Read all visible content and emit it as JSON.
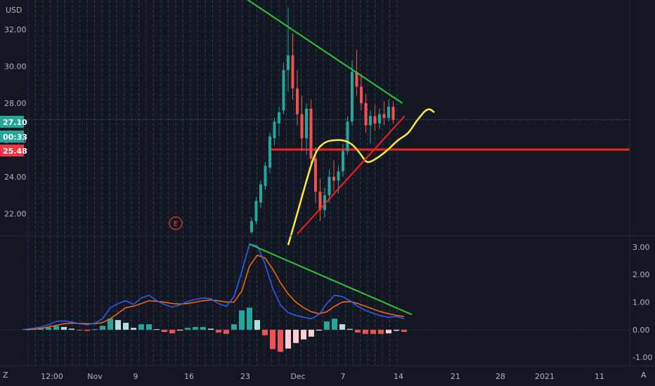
{
  "currency_label": "USD",
  "corner_left_label": "Z",
  "corner_right_label": "A",
  "earnings_marker": "E",
  "price_tags": {
    "last_price": {
      "text": "27.10",
      "color": "#26a69a"
    },
    "countdown": {
      "text": "00:33",
      "color": "#26a69a"
    },
    "support": {
      "text": "25.48",
      "color": "#f23645"
    }
  },
  "colors": {
    "background": "#131722",
    "up_candle": "#26a69a",
    "down_candle": "#ef5350",
    "moving_average": "#ffeb3b",
    "resistance_line": "#26c935",
    "support_line": "#ff1f1f",
    "macd_line": "#2962ff",
    "signal_line": "#ff6d00",
    "hist_positive": "#26a69a",
    "hist_positive_light": "#b2dfdb",
    "hist_negative": "#ef5350",
    "hist_negative_light": "#ffcdd2",
    "grid_dash": "#4a6fa5"
  },
  "chart_data": [
    {
      "type": "candlestick",
      "y_ticks": [
        "22.00",
        "24.00",
        "26.00",
        "28.00",
        "30.00",
        "32.00"
      ],
      "ylim": [
        20.8,
        33.6
      ],
      "x_tick_labels": [
        "12:00",
        "Nov",
        "9",
        "16",
        "23",
        "Dec",
        "7",
        "14",
        "21",
        "28",
        "2021",
        "11"
      ],
      "candles": [
        {
          "o": 21.0,
          "h": 21.8,
          "l": 20.9,
          "c": 21.6
        },
        {
          "o": 21.6,
          "h": 22.9,
          "l": 21.4,
          "c": 22.7
        },
        {
          "o": 22.6,
          "h": 23.8,
          "l": 22.3,
          "c": 23.6
        },
        {
          "o": 23.5,
          "h": 24.8,
          "l": 23.3,
          "c": 24.6
        },
        {
          "o": 24.5,
          "h": 26.4,
          "l": 24.2,
          "c": 26.2
        },
        {
          "o": 26.1,
          "h": 27.2,
          "l": 25.7,
          "c": 27.0
        },
        {
          "o": 26.9,
          "h": 27.8,
          "l": 26.2,
          "c": 27.5
        },
        {
          "o": 27.6,
          "h": 30.2,
          "l": 27.4,
          "c": 29.8
        },
        {
          "o": 29.8,
          "h": 33.2,
          "l": 28.6,
          "c": 30.6
        },
        {
          "o": 30.6,
          "h": 31.8,
          "l": 28.2,
          "c": 28.8
        },
        {
          "o": 28.8,
          "h": 29.8,
          "l": 26.8,
          "c": 27.4
        },
        {
          "o": 27.4,
          "h": 28.4,
          "l": 25.4,
          "c": 26.1
        },
        {
          "o": 26.1,
          "h": 28.0,
          "l": 25.2,
          "c": 27.7
        },
        {
          "o": 27.7,
          "h": 28.2,
          "l": 24.6,
          "c": 25.0
        },
        {
          "o": 25.0,
          "h": 25.6,
          "l": 22.6,
          "c": 23.2
        },
        {
          "o": 23.2,
          "h": 23.9,
          "l": 21.6,
          "c": 22.2
        },
        {
          "o": 22.2,
          "h": 23.4,
          "l": 21.8,
          "c": 23.0
        },
        {
          "o": 23.0,
          "h": 24.4,
          "l": 22.6,
          "c": 24.0
        },
        {
          "o": 24.0,
          "h": 24.9,
          "l": 23.2,
          "c": 23.8
        },
        {
          "o": 23.8,
          "h": 24.6,
          "l": 23.1,
          "c": 24.3
        },
        {
          "o": 24.3,
          "h": 25.8,
          "l": 24.0,
          "c": 25.4
        },
        {
          "o": 25.4,
          "h": 27.3,
          "l": 25.2,
          "c": 27.0
        },
        {
          "o": 27.0,
          "h": 30.3,
          "l": 26.8,
          "c": 29.7
        },
        {
          "o": 29.7,
          "h": 30.9,
          "l": 28.4,
          "c": 28.9
        },
        {
          "o": 28.9,
          "h": 29.6,
          "l": 27.6,
          "c": 28.0
        },
        {
          "o": 28.0,
          "h": 28.5,
          "l": 26.4,
          "c": 26.8
        },
        {
          "o": 26.8,
          "h": 27.6,
          "l": 25.8,
          "c": 27.3
        },
        {
          "o": 27.3,
          "h": 27.9,
          "l": 26.5,
          "c": 26.9
        },
        {
          "o": 26.9,
          "h": 27.7,
          "l": 26.6,
          "c": 27.4
        },
        {
          "o": 27.4,
          "h": 28.1,
          "l": 26.8,
          "c": 27.2
        },
        {
          "o": 27.2,
          "h": 28.2,
          "l": 27.0,
          "c": 27.8
        },
        {
          "o": 27.8,
          "h": 28.1,
          "l": 26.9,
          "c": 27.1
        }
      ],
      "moving_average": [
        [
          0,
          20.3
        ],
        [
          2,
          22.0
        ],
        [
          4,
          23.8
        ],
        [
          6,
          25.4
        ],
        [
          8,
          25.9
        ],
        [
          10,
          26.0
        ],
        [
          12,
          26.0
        ],
        [
          14,
          25.8
        ],
        [
          16,
          25.2
        ],
        [
          17,
          24.8
        ],
        [
          18,
          24.8
        ],
        [
          20,
          25.1
        ],
        [
          22,
          25.5
        ],
        [
          24,
          26.0
        ],
        [
          26,
          26.3
        ],
        [
          27,
          26.6
        ],
        [
          28,
          27.0
        ],
        [
          29,
          27.3
        ],
        [
          30,
          27.6
        ],
        [
          31,
          27.7
        ],
        [
          32,
          27.5
        ]
      ],
      "moving_average_x_offset": 8,
      "support_level": 25.48,
      "trendlines": [
        {
          "name": "resistance",
          "from": [
            -2,
            33.8
          ],
          "to": [
            33,
            28.0
          ]
        },
        {
          "name": "support",
          "from": [
            10,
            20.9
          ],
          "to": [
            33.5,
            27.3
          ]
        }
      ]
    },
    {
      "type": "macd",
      "y_ticks": [
        "-1.00",
        "0.00",
        "1.00",
        "2.00",
        "3.00"
      ],
      "ylim": [
        -1.3,
        3.3
      ],
      "macd": [
        0.02,
        0.05,
        0.1,
        0.18,
        0.3,
        0.32,
        0.28,
        0.22,
        0.18,
        0.24,
        0.4,
        0.8,
        0.95,
        1.05,
        0.92,
        1.15,
        1.25,
        1.05,
        0.92,
        0.82,
        0.9,
        1.02,
        1.1,
        1.15,
        1.12,
        0.95,
        0.85,
        1.2,
        2.1,
        3.1,
        3.05,
        2.4,
        1.5,
        0.9,
        0.62,
        0.52,
        0.45,
        0.4,
        0.55,
        0.95,
        1.25,
        1.2,
        1.05,
        0.85,
        0.7,
        0.6,
        0.5,
        0.45,
        0.48,
        0.4
      ],
      "signal": [
        0.0,
        0.02,
        0.05,
        0.1,
        0.16,
        0.22,
        0.24,
        0.23,
        0.22,
        0.22,
        0.26,
        0.4,
        0.6,
        0.8,
        0.85,
        0.95,
        1.05,
        1.03,
        1.0,
        0.95,
        0.93,
        0.95,
        1.0,
        1.05,
        1.08,
        1.05,
        1.0,
        1.0,
        1.4,
        2.3,
        2.7,
        2.6,
        2.2,
        1.7,
        1.3,
        1.0,
        0.8,
        0.65,
        0.58,
        0.65,
        0.85,
        1.0,
        1.02,
        0.95,
        0.85,
        0.75,
        0.65,
        0.58,
        0.52,
        0.48
      ],
      "histogram": [
        0.02,
        0.03,
        0.05,
        0.08,
        0.14,
        0.1,
        0.04,
        -0.01,
        -0.04,
        0.02,
        0.14,
        0.4,
        0.35,
        0.25,
        0.07,
        0.2,
        0.2,
        0.02,
        -0.08,
        -0.13,
        -0.03,
        0.07,
        0.1,
        0.1,
        0.04,
        -0.1,
        -0.15,
        0.2,
        0.7,
        0.8,
        0.35,
        -0.2,
        -0.7,
        -0.8,
        -0.68,
        -0.48,
        -0.35,
        -0.25,
        -0.03,
        0.3,
        0.4,
        0.2,
        0.03,
        -0.1,
        -0.15,
        -0.15,
        -0.15,
        -0.13,
        -0.04,
        -0.08
      ],
      "trendline": {
        "from": [
          29,
          3.1
        ],
        "to": [
          50,
          0.55
        ]
      }
    }
  ]
}
